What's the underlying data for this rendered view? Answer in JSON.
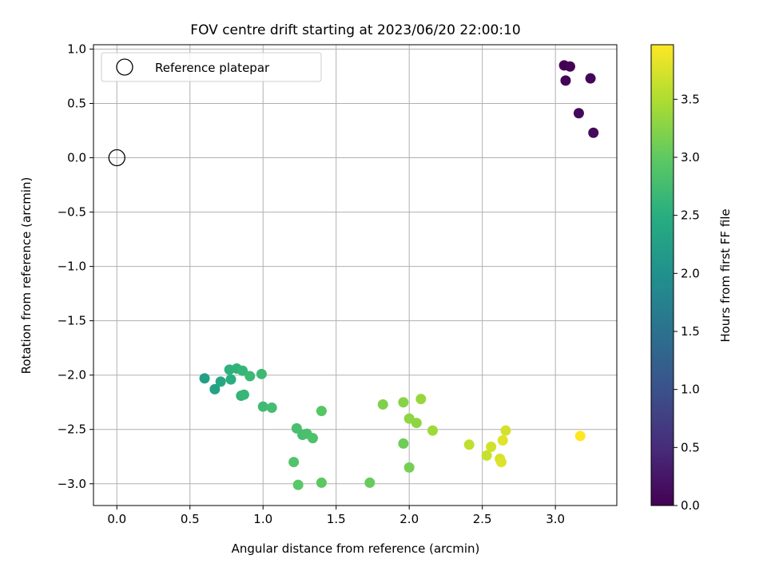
{
  "chart_data": {
    "type": "scatter",
    "title": "FOV centre drift starting at 2023/06/20 22:00:10",
    "xlabel": "Angular distance from reference (arcmin)",
    "ylabel": "Rotation from reference (arcmin)",
    "xlim": [
      -0.16,
      3.42
    ],
    "ylim": [
      -3.2,
      1.04
    ],
    "xticks": [
      "0.0",
      "0.5",
      "1.0",
      "1.5",
      "2.0",
      "2.5",
      "3.0"
    ],
    "xtick_values": [
      0,
      0.5,
      1,
      1.5,
      2,
      2.5,
      3
    ],
    "yticks": [
      "1.0",
      "0.5",
      "0.0",
      "−0.5",
      "−1.0",
      "−1.5",
      "−2.0",
      "−2.5",
      "−3.0"
    ],
    "ytick_values": [
      1,
      0.5,
      0,
      -0.5,
      -1,
      -1.5,
      -2,
      -2.5,
      -3
    ],
    "grid": true,
    "legend": {
      "placement": "top-left",
      "entries": [
        "Reference platepar"
      ]
    },
    "reference_point": {
      "x": 0.0,
      "y": 0.0,
      "label": "Reference platepar"
    },
    "colorbar": {
      "label": "Hours from first FF file",
      "colormap": "viridis",
      "range": [
        0.0,
        3.97
      ],
      "ticks": [
        "0.0",
        "0.5",
        "1.0",
        "1.5",
        "2.0",
        "2.5",
        "3.0",
        "3.5"
      ],
      "tick_values": [
        0,
        0.5,
        1,
        1.5,
        2,
        2.5,
        3,
        3.5
      ]
    },
    "points": [
      {
        "x": 3.06,
        "y": 0.85,
        "hours": 0.0
      },
      {
        "x": 3.1,
        "y": 0.84,
        "hours": 0.02
      },
      {
        "x": 3.07,
        "y": 0.71,
        "hours": 0.04
      },
      {
        "x": 3.24,
        "y": 0.73,
        "hours": 0.06
      },
      {
        "x": 3.16,
        "y": 0.41,
        "hours": 0.08
      },
      {
        "x": 3.26,
        "y": 0.23,
        "hours": 0.1
      },
      {
        "x": 0.6,
        "y": -2.03,
        "hours": 2.25
      },
      {
        "x": 0.67,
        "y": -2.13,
        "hours": 2.3
      },
      {
        "x": 0.71,
        "y": -2.06,
        "hours": 2.38
      },
      {
        "x": 0.77,
        "y": -1.95,
        "hours": 2.55
      },
      {
        "x": 0.78,
        "y": -2.04,
        "hours": 2.5
      },
      {
        "x": 0.82,
        "y": -1.94,
        "hours": 2.58
      },
      {
        "x": 0.86,
        "y": -1.96,
        "hours": 2.62
      },
      {
        "x": 0.85,
        "y": -2.19,
        "hours": 2.6
      },
      {
        "x": 0.87,
        "y": -2.18,
        "hours": 2.65
      },
      {
        "x": 0.91,
        "y": -2.01,
        "hours": 2.68
      },
      {
        "x": 0.99,
        "y": -1.99,
        "hours": 2.7
      },
      {
        "x": 1.0,
        "y": -2.29,
        "hours": 2.72
      },
      {
        "x": 1.06,
        "y": -2.3,
        "hours": 2.75
      },
      {
        "x": 1.23,
        "y": -2.49,
        "hours": 2.8
      },
      {
        "x": 1.27,
        "y": -2.55,
        "hours": 2.78
      },
      {
        "x": 1.3,
        "y": -2.54,
        "hours": 2.82
      },
      {
        "x": 1.34,
        "y": -2.58,
        "hours": 2.85
      },
      {
        "x": 1.4,
        "y": -2.33,
        "hours": 2.92
      },
      {
        "x": 1.21,
        "y": -2.8,
        "hours": 2.88
      },
      {
        "x": 1.24,
        "y": -3.01,
        "hours": 2.95
      },
      {
        "x": 1.4,
        "y": -2.99,
        "hours": 2.97
      },
      {
        "x": 1.73,
        "y": -2.99,
        "hours": 3.05
      },
      {
        "x": 1.82,
        "y": -2.27,
        "hours": 3.2
      },
      {
        "x": 1.96,
        "y": -2.25,
        "hours": 3.25
      },
      {
        "x": 1.96,
        "y": -2.63,
        "hours": 3.1
      },
      {
        "x": 2.0,
        "y": -2.4,
        "hours": 3.3
      },
      {
        "x": 2.0,
        "y": -2.85,
        "hours": 3.15
      },
      {
        "x": 2.05,
        "y": -2.44,
        "hours": 3.3
      },
      {
        "x": 2.08,
        "y": -2.22,
        "hours": 3.35
      },
      {
        "x": 2.16,
        "y": -2.51,
        "hours": 3.4
      },
      {
        "x": 2.41,
        "y": -2.64,
        "hours": 3.6
      },
      {
        "x": 2.53,
        "y": -2.74,
        "hours": 3.65
      },
      {
        "x": 2.56,
        "y": -2.66,
        "hours": 3.7
      },
      {
        "x": 2.62,
        "y": -2.77,
        "hours": 3.75
      },
      {
        "x": 2.63,
        "y": -2.8,
        "hours": 3.78
      },
      {
        "x": 2.64,
        "y": -2.6,
        "hours": 3.8
      },
      {
        "x": 2.66,
        "y": -2.51,
        "hours": 3.72
      },
      {
        "x": 3.17,
        "y": -2.56,
        "hours": 3.97
      }
    ]
  }
}
